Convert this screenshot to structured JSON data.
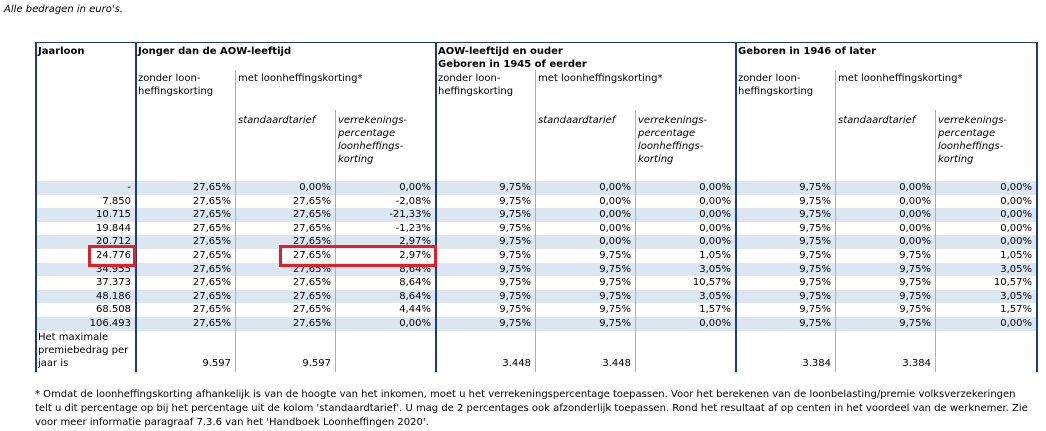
{
  "note": "Alle bedragen in euro's.",
  "header": {
    "jaarloon": "Jaarloon",
    "groups": [
      "Jonger dan de AOW-leeftijd",
      "AOW-leeftijd en ouder\nGeboren in 1945 of eerder",
      "Geboren in 1946 of later"
    ],
    "sub": [
      "zonder loon-\nheffingskorting",
      "met loonheffingskorting*"
    ],
    "subsub": [
      "standaardtarief",
      "verrekenings-\npercentage\nloonheffings-\nkorting"
    ]
  },
  "table": {
    "rows": [
      [
        "-",
        "27,65%",
        "0,00%",
        "0,00%",
        "9,75%",
        "0,00%",
        "0,00%",
        "9,75%",
        "0,00%",
        "0,00%"
      ],
      [
        "7.850",
        "27,65%",
        "27,65%",
        "-2,08%",
        "9,75%",
        "0,00%",
        "0,00%",
        "9,75%",
        "0,00%",
        "0,00%"
      ],
      [
        "10.715",
        "27,65%",
        "27,65%",
        "-21,33%",
        "9,75%",
        "0,00%",
        "0,00%",
        "9,75%",
        "0,00%",
        "0,00%"
      ],
      [
        "19.844",
        "27,65%",
        "27,65%",
        "-1,23%",
        "9,75%",
        "0,00%",
        "0,00%",
        "9,75%",
        "0,00%",
        "0,00%"
      ],
      [
        "20.712",
        "27,65%",
        "27,65%",
        "2,97%",
        "9,75%",
        "0,00%",
        "0,00%",
        "9,75%",
        "0,00%",
        "0,00%"
      ],
      [
        "24.776",
        "27,65%",
        "27,65%",
        "2,97%",
        "9,75%",
        "9,75%",
        "1,05%",
        "9,75%",
        "9,75%",
        "1,05%"
      ],
      [
        "34.955",
        "27,65%",
        "27,65%",
        "8,64%",
        "9,75%",
        "9,75%",
        "3,05%",
        "9,75%",
        "9,75%",
        "3,05%"
      ],
      [
        "37.373",
        "27,65%",
        "27,65%",
        "8,64%",
        "9,75%",
        "9,75%",
        "10,57%",
        "9,75%",
        "9,75%",
        "10,57%"
      ],
      [
        "48.186",
        "27,65%",
        "27,65%",
        "8,64%",
        "9,75%",
        "9,75%",
        "3,05%",
        "9,75%",
        "9,75%",
        "3,05%"
      ],
      [
        "68.508",
        "27,65%",
        "27,65%",
        "4,44%",
        "9,75%",
        "9,75%",
        "1,57%",
        "9,75%",
        "9,75%",
        "1,57%"
      ],
      [
        "106.493",
        "27,65%",
        "27,65%",
        "0,00%",
        "9,75%",
        "9,75%",
        "0,00%",
        "9,75%",
        "9,75%",
        "0,00%"
      ]
    ],
    "max": {
      "label": "Het maximale premiebedrag per jaar is",
      "values": [
        "9.597",
        "9.597",
        "3.448",
        "3.448",
        "3.384",
        "3.384"
      ]
    }
  },
  "footnote": "* Omdat de loonheffingskorting afhankelijk is van de hoogte van het inkomen, moet u het verrekeningspercentage toepassen. Voor het berekenen van de loonbelasting/premie volksverzekeringen telt u dit percentage op bij het percentage uit de kolom 'standaardtarief'. U mag de 2 percentages ook afzonderlijk toepassen. Rond het resultaat af op centen in het voordeel van de werknemer. Zie voor meer informatie paragraaf 7.3.6 van het 'Handboek Loonheffingen 2020'."
}
